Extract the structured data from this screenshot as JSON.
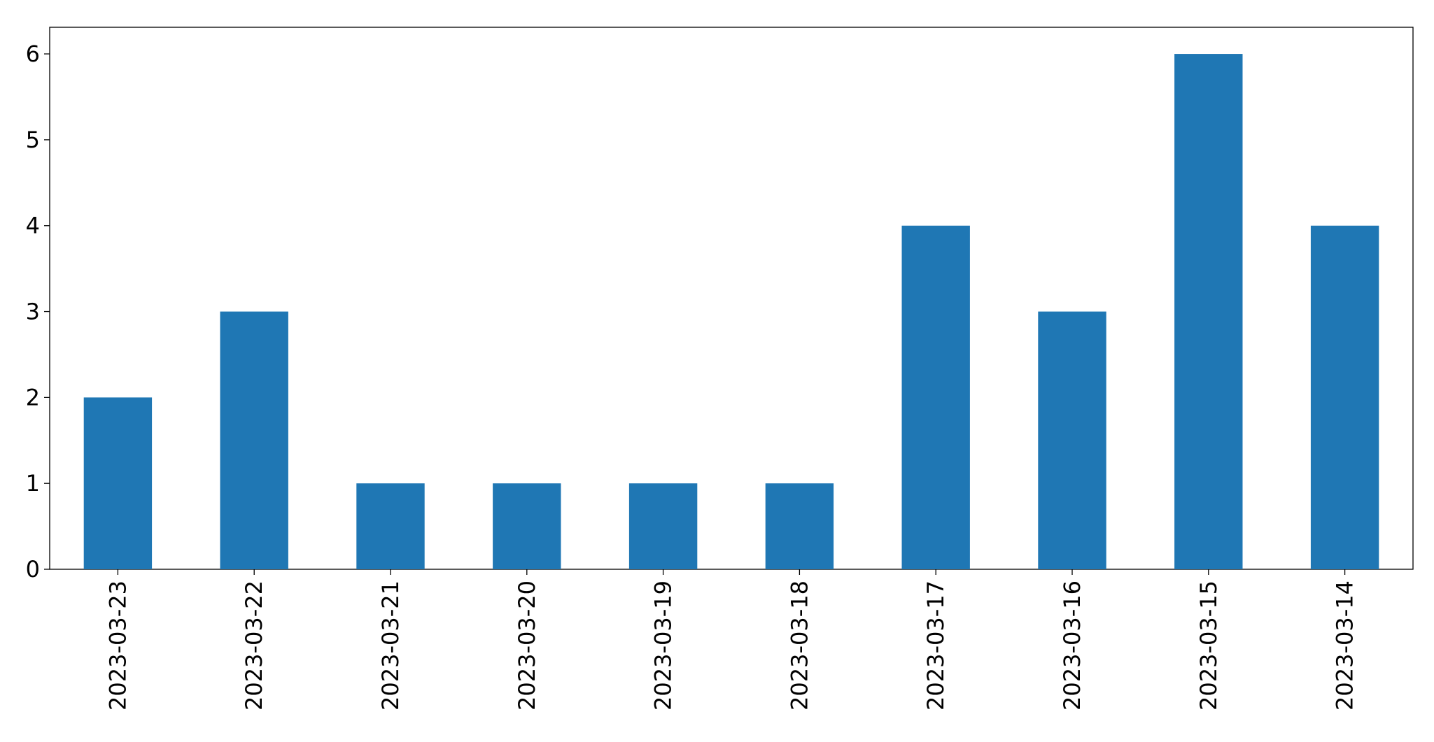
{
  "chart_data": {
    "type": "bar",
    "categories": [
      "2023-03-23",
      "2023-03-22",
      "2023-03-21",
      "2023-03-20",
      "2023-03-19",
      "2023-03-18",
      "2023-03-17",
      "2023-03-16",
      "2023-03-15",
      "2023-03-14"
    ],
    "values": [
      2,
      3,
      1,
      1,
      1,
      1,
      4,
      3,
      6,
      4
    ],
    "color": "#1f77b4",
    "ylim": [
      0,
      6.31
    ],
    "yticks": [
      0,
      1,
      2,
      3,
      4,
      5,
      6
    ],
    "grid": false
  }
}
